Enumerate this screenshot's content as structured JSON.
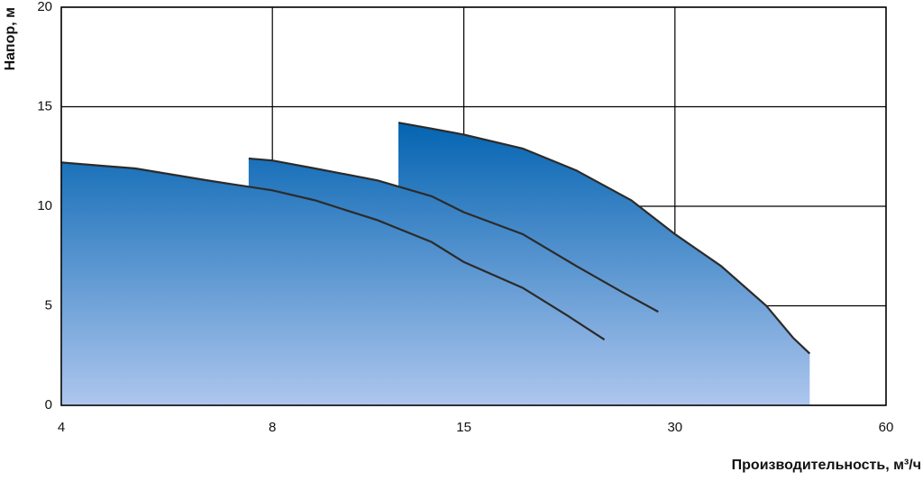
{
  "chart_data": {
    "type": "area",
    "ylabel": "Напор, м",
    "xlabel": "Производительность, м³/ч",
    "xscale": "log",
    "xlim": [
      4,
      60
    ],
    "xticks": [
      4,
      8,
      15,
      30,
      60
    ],
    "ylim": [
      0,
      20
    ],
    "yticks": [
      0,
      5,
      10,
      15,
      20
    ],
    "grid": true,
    "fill_gradient": [
      "#0062b0",
      "#aec6ee"
    ],
    "line_color": "#2b2b2b",
    "series": [
      {
        "x": [
          4,
          5.1,
          6.46,
          8,
          9.2,
          11.3,
          13.5,
          15,
          18.2,
          21.1,
          23.8
        ],
        "values": [
          12.2,
          11.9,
          11.3,
          10.8,
          10.3,
          9.3,
          8.2,
          7.2,
          5.9,
          4.5,
          3.3
        ]
      },
      {
        "x": [
          7.4,
          8,
          9.2,
          11.3,
          13.5,
          15,
          18.2,
          21.7,
          25.2,
          28.4
        ],
        "values": [
          12.4,
          12.3,
          11.9,
          11.3,
          10.5,
          9.7,
          8.6,
          7.0,
          5.7,
          4.7
        ]
      },
      {
        "x": [
          12.1,
          13.5,
          15,
          18.2,
          21.7,
          26,
          30,
          34.9,
          40.5,
          44.2,
          46.7
        ],
        "values": [
          14.2,
          13.9,
          13.6,
          12.9,
          11.8,
          10.3,
          8.6,
          7.0,
          5.0,
          3.4,
          2.6
        ]
      }
    ]
  }
}
